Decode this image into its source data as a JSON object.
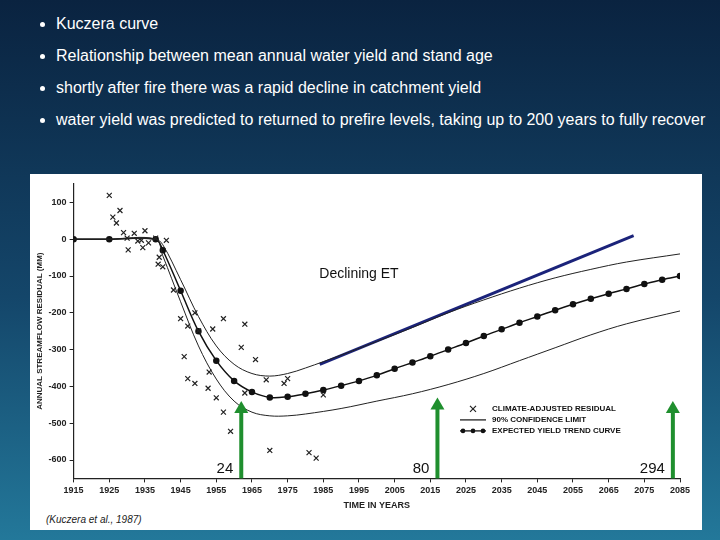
{
  "slide": {
    "bullets": [
      "Kuczera curve",
      "Relationship between mean annual water yield and stand age",
      "shortly after fire there was a rapid decline in catchment yield",
      "water yield was predicted to returned to prefire levels, taking up to 200 years to fully recover"
    ],
    "citation": "(Kuczera et al., 1987)"
  },
  "chart_data": {
    "type": "line",
    "x_label": "TIME IN YEARS",
    "y_label": "ANNUAL STREAMFLOW RESIDUAL (MM)",
    "xlim": [
      1915,
      2085
    ],
    "xticks": [
      1915,
      1925,
      1935,
      1945,
      1955,
      1965,
      1975,
      1985,
      1995,
      2005,
      2015,
      2025,
      2035,
      2045,
      2055,
      2065,
      2075,
      2085
    ],
    "ylim": [
      -650,
      150
    ],
    "yticks": [
      -600,
      -500,
      -400,
      -300,
      -200,
      -100,
      0,
      100
    ],
    "grid": false,
    "legend": "lower right",
    "series": [
      {
        "name": "CLIMATE-ADJUSTED RESIDUAL",
        "type": "scatter",
        "marker": "x",
        "color": "#222222",
        "x": [
          1925,
          1926,
          1927,
          1928,
          1929,
          1930,
          1930.3,
          1932,
          1933,
          1934,
          1934.4,
          1935,
          1936,
          1938,
          1938.7,
          1939,
          1940,
          1941,
          1943,
          1945,
          1946,
          1947,
          1947,
          1949,
          1949,
          1950,
          1952.7,
          1953,
          1954,
          1955,
          1957,
          1957,
          1959,
          1962,
          1963,
          1963,
          1966,
          1969,
          1970,
          1974,
          1975,
          1981,
          1983,
          1985
        ],
        "values": [
          119,
          60,
          44,
          78,
          18,
          3,
          -29,
          16,
          -5,
          -3,
          -23,
          23,
          -10,
          3,
          -68,
          -49,
          -75,
          -3,
          -138,
          -216,
          -319,
          -236,
          -379,
          -200,
          -392,
          -249,
          -405,
          -361,
          -244,
          -431,
          -216,
          -470,
          -522,
          -294,
          -231,
          -418,
          -327,
          -382,
          -574,
          -392,
          -379,
          -580,
          -595,
          -423
        ]
      },
      {
        "name": "90% CONFIDENCE LIMIT",
        "type": "line",
        "marker": "none",
        "line_style": "solid",
        "color": "#222222",
        "x": [
          1915,
          1925,
          1938,
          1940,
          1945,
          1950,
          1955,
          1960,
          1965,
          1970,
          1975,
          1980,
          1990,
          2000,
          2010,
          2020,
          2030,
          2040,
          2050,
          2060,
          2070,
          2085
        ],
        "upper": [
          0,
          0,
          0,
          -15,
          -110,
          -210,
          -290,
          -340,
          -365,
          -372,
          -365,
          -350,
          -315,
          -278,
          -240,
          -200,
          -165,
          -133,
          -105,
          -82,
          -62,
          -40
        ],
        "lower": [
          0,
          0,
          0,
          -45,
          -170,
          -290,
          -380,
          -440,
          -470,
          -480,
          -480,
          -475,
          -460,
          -440,
          -420,
          -395,
          -365,
          -330,
          -295,
          -260,
          -230,
          -195
        ]
      },
      {
        "name": "EXPECTED YIELD TREND CURVE",
        "type": "line",
        "marker": "circle",
        "line_style": "solid",
        "color": "#111111",
        "x": [
          1915,
          1925,
          1938,
          1940,
          1945,
          1950,
          1955,
          1960,
          1965,
          1970,
          1975,
          1980,
          1985,
          1990,
          1995,
          2000,
          2005,
          2010,
          2015,
          2020,
          2025,
          2030,
          2035,
          2040,
          2045,
          2050,
          2055,
          2060,
          2065,
          2070,
          2075,
          2080,
          2085
        ],
        "values": [
          0,
          0,
          0,
          -30,
          -140,
          -250,
          -330,
          -385,
          -415,
          -430,
          -428,
          -420,
          -410,
          -398,
          -385,
          -370,
          -352,
          -335,
          -318,
          -300,
          -282,
          -263,
          -245,
          -227,
          -210,
          -193,
          -177,
          -162,
          -148,
          -135,
          -122,
          -110,
          -100
        ]
      }
    ],
    "annotations": [
      {
        "text": "Declining ET",
        "x": 1995,
        "y": -95,
        "line": {
          "x": [
            1984,
            2072
          ],
          "values": [
            -340,
            10
          ],
          "color": "#1b237a"
        }
      },
      {
        "text": "24",
        "x": 1962,
        "y": -440,
        "marker": "arrow",
        "color": "#1f8f2e"
      },
      {
        "text": "80",
        "x": 2017,
        "y": -430,
        "marker": "arrow",
        "color": "#1f8f2e"
      },
      {
        "text": "294",
        "x": 2083,
        "y": -440,
        "marker": "arrow",
        "color": "#1f8f2e"
      }
    ]
  }
}
